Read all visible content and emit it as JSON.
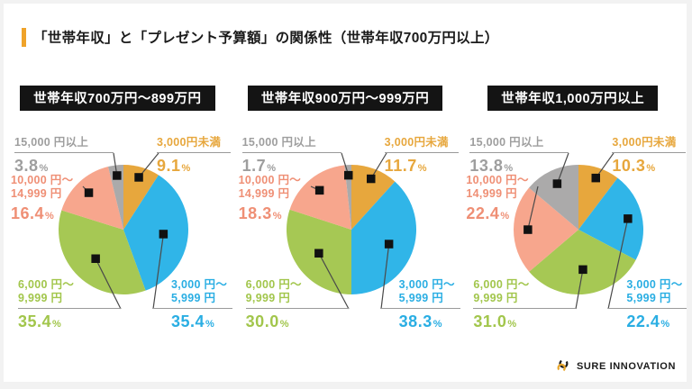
{
  "page": {
    "title": "「世帯年収」と「プレゼント予算額」の関係性（世帯年収700万円以上）"
  },
  "chart_style": {
    "accent_color": "#efa32a",
    "frame_color": "#f2f2f2",
    "header_bg": "#141414",
    "header_text_color": "#ffffff",
    "underline_color": "#9a9a9a",
    "leader_line_color": "#4a4a4a",
    "marker_color": "#111111"
  },
  "chart_data": [
    {
      "type": "pie",
      "title": "世帯年収700万円～899万円",
      "slices": [
        {
          "label": "3,000円未満",
          "pct": "9.1",
          "value": 9.1,
          "color": "#e7a73d"
        },
        {
          "line1": "3,000 円～",
          "line2": "5,999 円",
          "pct": "35.4",
          "value": 35.4,
          "color": "#30b5e8",
          "text_color": "#2aaee3"
        },
        {
          "line1": "6,000 円～",
          "line2": "9,999 円",
          "pct": "35.4",
          "value": 35.4,
          "color": "#a6c854",
          "text_color": "#a2c64c"
        },
        {
          "line1": "10,000 円～",
          "line2": "14,999 円",
          "pct": "16.4",
          "value": 16.4,
          "color": "#f7a68d",
          "text_color": "#ef8f75"
        },
        {
          "label": "15,000 円以上",
          "pct": "3.8",
          "value": 3.8,
          "color": "#abaaaa",
          "text_color": "#9e9e9e"
        }
      ]
    },
    {
      "type": "pie",
      "title": "世帯年収900万円～999万円",
      "slices": [
        {
          "label": "3,000円未満",
          "pct": "11.7",
          "value": 11.7,
          "color": "#e7a73d"
        },
        {
          "line1": "3,000 円～",
          "line2": "5,999 円",
          "pct": "38.3",
          "value": 38.3,
          "color": "#30b5e8",
          "text_color": "#2aaee3"
        },
        {
          "line1": "6,000 円～",
          "line2": "9,999 円",
          "pct": "30.0",
          "value": 30.0,
          "color": "#a6c854",
          "text_color": "#a2c64c"
        },
        {
          "line1": "10,000 円～",
          "line2": "14,999 円",
          "pct": "18.3",
          "value": 18.3,
          "color": "#f7a68d",
          "text_color": "#ef8f75"
        },
        {
          "label": "15,000 円以上",
          "pct": "1.7",
          "value": 1.7,
          "color": "#abaaaa",
          "text_color": "#9e9e9e"
        }
      ]
    },
    {
      "type": "pie",
      "title": "世帯年収1,000万円以上",
      "slices": [
        {
          "label": "3,000円未満",
          "pct": "10.3",
          "value": 10.3,
          "color": "#e7a73d"
        },
        {
          "line1": "3,000 円～",
          "line2": "5,999 円",
          "pct": "22.4",
          "value": 22.4,
          "color": "#30b5e8",
          "text_color": "#2aaee3"
        },
        {
          "line1": "6,000 円～",
          "line2": "9,999 円",
          "pct": "31.0",
          "value": 31.0,
          "color": "#a6c854",
          "text_color": "#a2c64c"
        },
        {
          "line1": "10,000 円～",
          "line2": "14,999 円",
          "pct": "22.4",
          "value": 22.4,
          "color": "#f7a68d",
          "text_color": "#ef8f75"
        },
        {
          "label": "15,000 円以上",
          "pct": "13.8",
          "value": 13.8,
          "color": "#abaaaa",
          "text_color": "#9e9e9e"
        }
      ]
    }
  ],
  "footer": {
    "brand": "SURE INNOVATION"
  }
}
